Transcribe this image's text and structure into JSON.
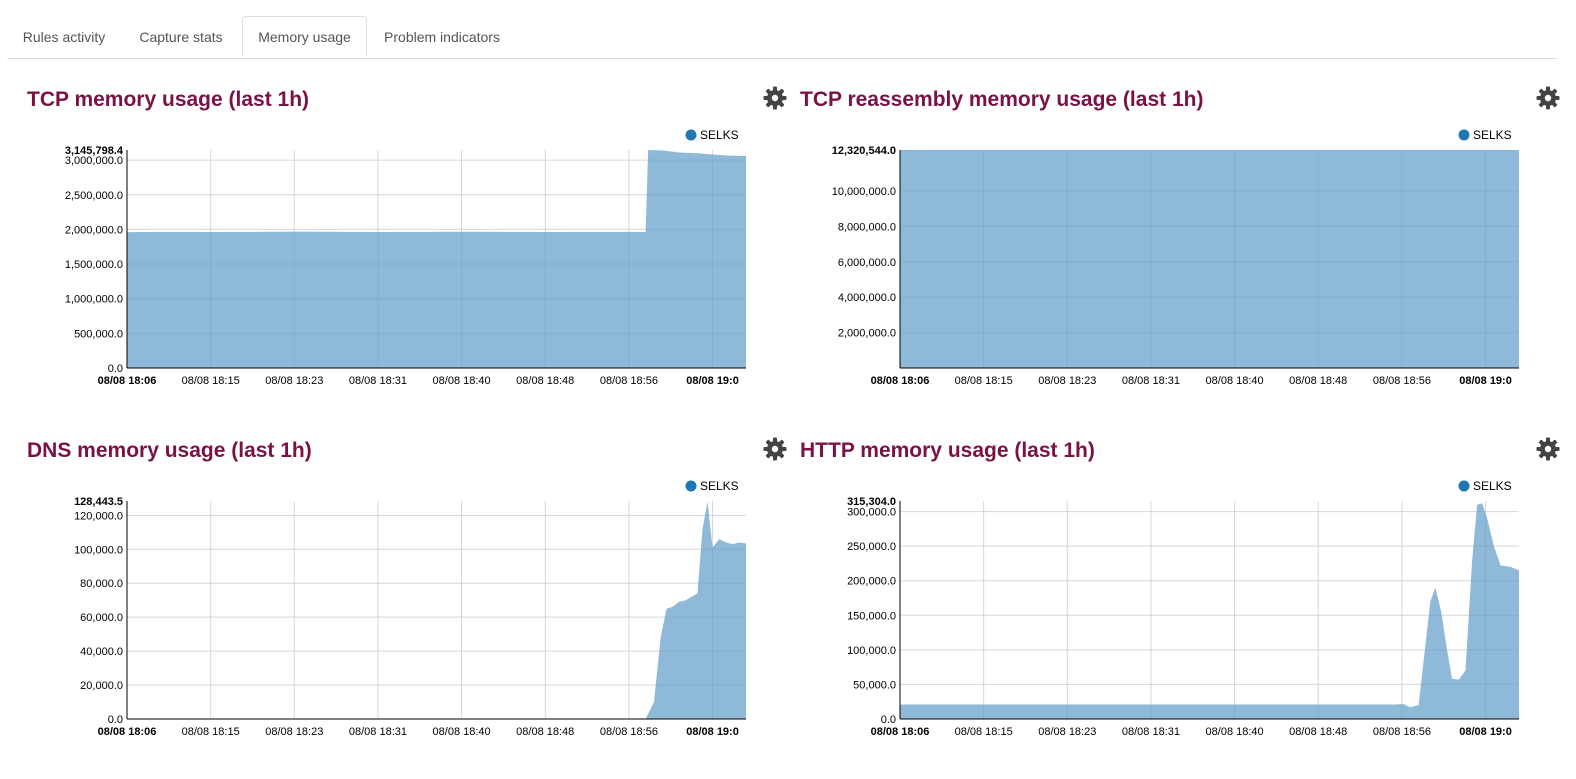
{
  "tabs": [
    {
      "label": "Rules activity",
      "active": false
    },
    {
      "label": "Capture stats",
      "active": false
    },
    {
      "label": "Memory usage",
      "active": true
    },
    {
      "label": "Problem indicators",
      "active": false
    }
  ],
  "legend_color": "#1f77b4",
  "area_color": "#8fb9d9",
  "title_color": "#7a1245",
  "charts": [
    {
      "title": "TCP memory usage (last 1h)",
      "legend": "SELKS",
      "settings_icon": "gear-icon",
      "chart_data": {
        "type": "area",
        "x": [
          "08/08 18:06",
          "08/08 18:15",
          "08/08 18:23",
          "08/08 18:31",
          "08/08 18:40",
          "08/08 18:48",
          "08/08 18:56",
          "08/08 19:0"
        ],
        "x_tick_labels": [
          "08/08 18:06",
          "08/08 18:15",
          "08/08 18:23",
          "08/08 18:31",
          "08/08 18:40",
          "08/08 18:48",
          "08/08 18:56",
          "08/08 19:0"
        ],
        "y_tick_labels": [
          "0.0",
          "500,000.0",
          "1,000,000.0",
          "1,500,000.0",
          "2,000,000.0",
          "2,500,000.0",
          "3,000,000.0"
        ],
        "ymax_label": "3,145,798.4",
        "ylim": [
          0,
          3145798.4
        ],
        "series": [
          {
            "name": "SELKS",
            "points": [
              [
                0,
                1960000
              ],
              [
                50,
                1965000
              ],
              [
                100,
                1962000
              ],
              [
                200,
                1968000
              ],
              [
                300,
                1962000
              ],
              [
                400,
                1966000
              ],
              [
                500,
                1963000
              ],
              [
                600,
                1965000
              ],
              [
                620,
                1963000
              ],
              [
                623,
                3145798
              ],
              [
                640,
                3140000
              ],
              [
                660,
                3110000
              ],
              [
                680,
                3100000
              ],
              [
                700,
                3080000
              ],
              [
                720,
                3065000
              ],
              [
                740,
                3060000
              ]
            ]
          }
        ]
      }
    },
    {
      "title": "TCP reassembly memory usage (last 1h)",
      "legend": "SELKS",
      "settings_icon": "gear-icon",
      "chart_data": {
        "type": "area",
        "x": [
          "08/08 18:06",
          "08/08 18:15",
          "08/08 18:23",
          "08/08 18:31",
          "08/08 18:40",
          "08/08 18:48",
          "08/08 18:56",
          "08/08 19:0"
        ],
        "x_tick_labels": [
          "08/08 18:06",
          "08/08 18:15",
          "08/08 18:23",
          "08/08 18:31",
          "08/08 18:40",
          "08/08 18:48",
          "08/08 18:56",
          "08/08 19:0"
        ],
        "y_tick_labels": [
          "2,000,000.0",
          "4,000,000.0",
          "6,000,000.0",
          "8,000,000.0",
          "10,000,000.0"
        ],
        "ymax_label": "12,320,544.0",
        "ylim": [
          0,
          12320544.0
        ],
        "series": [
          {
            "name": "SELKS",
            "points": [
              [
                0,
                12320544
              ],
              [
                740,
                12320544
              ]
            ]
          }
        ]
      }
    },
    {
      "title": "DNS memory usage (last 1h)",
      "legend": "SELKS",
      "settings_icon": "gear-icon",
      "chart_data": {
        "type": "area",
        "x": [
          "08/08 18:06",
          "08/08 18:15",
          "08/08 18:23",
          "08/08 18:31",
          "08/08 18:40",
          "08/08 18:48",
          "08/08 18:56",
          "08/08 19:0"
        ],
        "x_tick_labels": [
          "08/08 18:06",
          "08/08 18:15",
          "08/08 18:23",
          "08/08 18:31",
          "08/08 18:40",
          "08/08 18:48",
          "08/08 18:56",
          "08/08 19:0"
        ],
        "y_tick_labels": [
          "0.0",
          "20,000.0",
          "40,000.0",
          "60,000.0",
          "80,000.0",
          "100,000.0",
          "120,000.0"
        ],
        "ymax_label": "128,443.5",
        "ylim": [
          0,
          128443.5
        ],
        "series": [
          {
            "name": "SELKS",
            "points": [
              [
                0,
                0
              ],
              [
                620,
                0
              ],
              [
                630,
                10000
              ],
              [
                638,
                48000
              ],
              [
                645,
                65000
              ],
              [
                652,
                66000
              ],
              [
                660,
                69000
              ],
              [
                668,
                70000
              ],
              [
                675,
                72000
              ],
              [
                682,
                74000
              ],
              [
                688,
                112000
              ],
              [
                694,
                128000
              ],
              [
                700,
                101000
              ],
              [
                708,
                106000
              ],
              [
                716,
                104000
              ],
              [
                724,
                103000
              ],
              [
                732,
                104000
              ],
              [
                740,
                103500
              ]
            ]
          }
        ]
      }
    },
    {
      "title": "HTTP memory usage (last 1h)",
      "legend": "SELKS",
      "settings_icon": "gear-icon",
      "chart_data": {
        "type": "area",
        "x": [
          "08/08 18:06",
          "08/08 18:15",
          "08/08 18:23",
          "08/08 18:31",
          "08/08 18:40",
          "08/08 18:48",
          "08/08 18:56",
          "08/08 19:0"
        ],
        "x_tick_labels": [
          "08/08 18:06",
          "08/08 18:15",
          "08/08 18:23",
          "08/08 18:31",
          "08/08 18:40",
          "08/08 18:48",
          "08/08 18:56",
          "08/08 19:0"
        ],
        "y_tick_labels": [
          "0.0",
          "50,000.0",
          "100,000.0",
          "150,000.0",
          "200,000.0",
          "250,000.0",
          "300,000.0"
        ],
        "ymax_label": "315,304.0",
        "ylim": [
          0,
          315304.0
        ],
        "series": [
          {
            "name": "SELKS",
            "points": [
              [
                0,
                21000
              ],
              [
                590,
                21000
              ],
              [
                602,
                21500
              ],
              [
                610,
                17000
              ],
              [
                620,
                20000
              ],
              [
                627,
                95000
              ],
              [
                634,
                170000
              ],
              [
                640,
                190000
              ],
              [
                647,
                155000
              ],
              [
                654,
                100000
              ],
              [
                660,
                58000
              ],
              [
                668,
                57000
              ],
              [
                676,
                70000
              ],
              [
                684,
                230000
              ],
              [
                690,
                310000
              ],
              [
                696,
                312000
              ],
              [
                702,
                290000
              ],
              [
                710,
                250000
              ],
              [
                718,
                222000
              ],
              [
                730,
                220000
              ],
              [
                740,
                215000
              ]
            ]
          }
        ]
      }
    }
  ]
}
